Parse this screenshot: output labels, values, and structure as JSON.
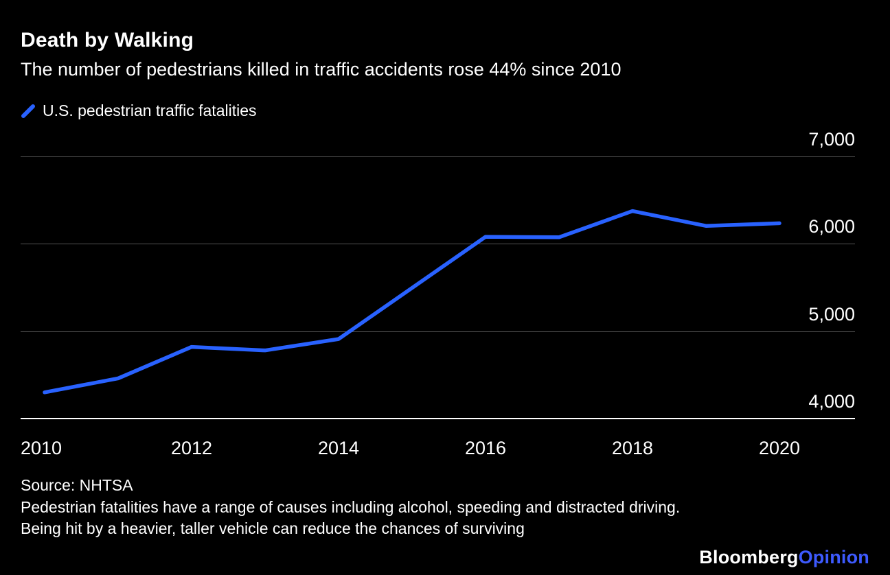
{
  "header": {
    "title": "Death by Walking",
    "subtitle": "The number of pedestrians killed in traffic accidents rose 44% since 2010"
  },
  "legend": {
    "label": "U.S. pedestrian traffic fatalities"
  },
  "chart_data": {
    "type": "line",
    "title": "Death by Walking",
    "subtitle": "The number of pedestrians killed in traffic accidents rose 44% since 2010",
    "x": [
      2010,
      2011,
      2012,
      2013,
      2014,
      2015,
      2016,
      2017,
      2018,
      2019,
      2020
    ],
    "series": [
      {
        "name": "U.S. pedestrian traffic fatalities",
        "values": [
          4300,
          4460,
          4820,
          4780,
          4910,
          5495,
          6080,
          6075,
          6375,
          6205,
          6235
        ]
      }
    ],
    "x_ticks": [
      2010,
      2012,
      2014,
      2016,
      2018,
      2020
    ],
    "x_tick_labels": [
      "2010",
      "2012",
      "2014",
      "2016",
      "2018",
      "2020"
    ],
    "y_ticks": [
      4000,
      5000,
      6000,
      7000
    ],
    "y_tick_labels": [
      "4,000",
      "5,000",
      "6,000",
      "7,000"
    ],
    "ylim": [
      4000,
      7000
    ],
    "xlim": [
      2010,
      2021
    ],
    "grid": "horizontal",
    "legend_position": "top-left"
  },
  "footer": {
    "source": "Source: NHTSA",
    "note": "Pedestrian fatalities have a range of causes including alcohol, speeding and distracted driving. Being hit by a heavier, taller vehicle can reduce the chances of surviving",
    "brand": {
      "bloomberg": "Bloomberg",
      "opinion": "Opinion"
    }
  },
  "colors": {
    "background": "#000000",
    "text": "#ffffff",
    "line": "#2962ff",
    "grid": "#555555",
    "axis": "#ffffff",
    "opinion": "#3d5afe"
  }
}
